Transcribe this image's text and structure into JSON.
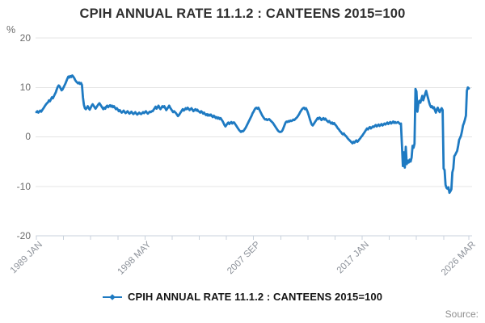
{
  "header": {
    "title": "CPIH ANNUAL RATE 11.1.2 : CANTEENS 2015=100",
    "unit_label": "%"
  },
  "legend": {
    "label": "CPIH ANNUAL RATE 11.1.2 : CANTEENS 2015=100"
  },
  "footer": {
    "source_label": "Source:"
  },
  "chart_data": {
    "type": "line",
    "title": "CPIH ANNUAL RATE 11.1.2 : CANTEENS 2015=100",
    "xlabel": "",
    "ylabel": "%",
    "ylim": [
      -20,
      20
    ],
    "grid": true,
    "legend_position": "bottom",
    "y_ticks": [
      20,
      10,
      0,
      -10,
      -20
    ],
    "y_tick_labels": [
      "20",
      "10",
      "0",
      "-10",
      "-20"
    ],
    "x_tick_labels": [
      "1989 JAN",
      "1998 MAY",
      "2007 SEP",
      "2017 JAN",
      "2026 MAR"
    ],
    "x_labeled_tick_months": [
      0,
      112,
      224,
      336,
      446
    ],
    "x_minor_tick_months": [
      0,
      28,
      56,
      84,
      112,
      140,
      168,
      196,
      224,
      252,
      280,
      308,
      336,
      364,
      392,
      420,
      446
    ],
    "start": "1989-01",
    "end": "2026-03",
    "freq": "monthly",
    "grid_color": "#e4e4e4",
    "axis_color": "#c9d2dc",
    "series": [
      {
        "name": "CPIH ANNUAL RATE 11.1.2 : CANTEENS 2015=100",
        "color": "#1e7ac2",
        "values": [
          5.0,
          5.2,
          4.9,
          5.1,
          5.3,
          5.1,
          5.4,
          5.7,
          6.0,
          6.3,
          6.6,
          6.8,
          7.0,
          7.4,
          7.2,
          7.6,
          8.0,
          7.8,
          8.2,
          8.6,
          9.0,
          9.6,
          10.1,
          10.4,
          10.2,
          9.8,
          9.4,
          9.6,
          10.0,
          10.4,
          10.8,
          11.3,
          11.8,
          12.2,
          12.0,
          12.3,
          12.1,
          12.4,
          12.2,
          11.9,
          11.5,
          11.2,
          11.0,
          10.8,
          11.0,
          10.7,
          10.9,
          10.5,
          8.0,
          6.5,
          5.8,
          5.6,
          5.9,
          6.2,
          5.8,
          5.5,
          5.9,
          6.3,
          6.6,
          6.3,
          6.0,
          5.7,
          6.0,
          6.3,
          6.6,
          6.8,
          6.5,
          6.2,
          5.9,
          5.6,
          5.9,
          5.7,
          6.1,
          6.3,
          6.0,
          6.2,
          6.4,
          6.1,
          6.3,
          6.0,
          6.2,
          5.9,
          5.6,
          5.8,
          5.5,
          5.2,
          5.4,
          5.1,
          4.9,
          5.1,
          5.3,
          5.0,
          4.8,
          5.0,
          5.2,
          4.9,
          4.7,
          4.9,
          5.1,
          4.8,
          4.6,
          4.8,
          5.0,
          4.7,
          4.5,
          4.7,
          4.9,
          4.7,
          4.6,
          4.8,
          5.0,
          4.8,
          5.0,
          5.2,
          4.9,
          4.7,
          4.9,
          5.1,
          5.0,
          5.2,
          5.2,
          5.5,
          5.8,
          6.1,
          5.7,
          6.0,
          6.3,
          5.9,
          5.6,
          5.9,
          6.2,
          6.0,
          6.2,
          5.8,
          5.4,
          5.7,
          6.0,
          6.3,
          5.9,
          5.6,
          5.3,
          5.0,
          5.2,
          5.0,
          4.8,
          4.5,
          4.2,
          4.4,
          4.7,
          5.0,
          5.3,
          5.6,
          5.3,
          5.5,
          5.8,
          5.6,
          5.9,
          5.7,
          5.4,
          5.6,
          5.8,
          5.5,
          5.2,
          5.4,
          5.6,
          5.3,
          5.5,
          5.2,
          5.1,
          4.9,
          5.2,
          5.0,
          4.7,
          4.9,
          4.6,
          4.4,
          4.6,
          4.3,
          4.5,
          4.3,
          4.5,
          4.2,
          4.0,
          4.3,
          4.1,
          3.8,
          4.0,
          3.7,
          3.9,
          3.6,
          3.8,
          3.5,
          3.2,
          2.8,
          2.4,
          2.1,
          2.4,
          2.7,
          2.9,
          2.6,
          2.8,
          3.0,
          2.7,
          2.9,
          2.9,
          2.6,
          2.3,
          2.0,
          1.7,
          1.4,
          1.2,
          1.0,
          1.2,
          1.1,
          1.3,
          1.6,
          1.9,
          2.3,
          2.7,
          3.1,
          3.5,
          3.9,
          4.3,
          4.8,
          5.1,
          5.5,
          5.8,
          5.9,
          5.7,
          5.9,
          5.5,
          5.1,
          4.7,
          4.3,
          4.0,
          3.7,
          3.5,
          3.6,
          3.4,
          3.5,
          3.6,
          3.4,
          3.2,
          3.0,
          2.8,
          2.5,
          2.2,
          1.9,
          1.6,
          1.3,
          1.1,
          1.0,
          1.0,
          1.1,
          1.4,
          1.9,
          2.4,
          2.9,
          3.1,
          3.0,
          3.2,
          3.1,
          3.3,
          3.2,
          3.3,
          3.5,
          3.4,
          3.6,
          3.8,
          4.0,
          4.3,
          4.6,
          5.0,
          5.3,
          5.6,
          5.8,
          5.9,
          5.6,
          5.8,
          5.4,
          4.9,
          4.3,
          3.6,
          3.0,
          2.5,
          2.3,
          2.6,
          2.9,
          3.2,
          3.5,
          3.8,
          3.6,
          3.9,
          3.7,
          3.4,
          3.6,
          3.8,
          3.5,
          3.7,
          3.4,
          3.2,
          3.0,
          3.2,
          2.9,
          2.7,
          2.9,
          2.6,
          2.8,
          2.5,
          2.3,
          2.0,
          1.7,
          1.5,
          1.2,
          1.0,
          0.7,
          0.5,
          0.7,
          0.4,
          0.2,
          0.0,
          -0.3,
          -0.5,
          -0.7,
          -0.9,
          -1.1,
          -1.3,
          -1.0,
          -1.2,
          -0.9,
          -0.7,
          -1.0,
          -0.8,
          -0.5,
          -0.3,
          0.0,
          0.2,
          0.5,
          0.8,
          1.1,
          1.4,
          1.7,
          1.5,
          1.8,
          2.0,
          1.7,
          1.9,
          2.1,
          2.0,
          2.2,
          2.4,
          2.1,
          2.3,
          2.5,
          2.2,
          2.4,
          2.6,
          2.3,
          2.5,
          2.7,
          2.5,
          2.7,
          2.9,
          2.6,
          2.8,
          3.0,
          2.7,
          2.9,
          3.1,
          2.8,
          3.0,
          2.8,
          2.9,
          3.0,
          2.8,
          2.6,
          2.7,
          -1.5,
          -5.9,
          -3.1,
          -6.2,
          -2.0,
          -5.5,
          -4.8,
          -5.2,
          -4.6,
          -5.0,
          -4.2,
          -1.8,
          -2.2,
          -1.4,
          9.7,
          9.2,
          5.1,
          6.7,
          7.3,
          6.9,
          7.6,
          8.3,
          7.4,
          8.0,
          8.7,
          9.3,
          8.5,
          7.8,
          7.0,
          6.4,
          6.0,
          6.2,
          5.8,
          6.0,
          5.4,
          4.9,
          5.6,
          5.9,
          5.3,
          5.0,
          5.5,
          5.8,
          5.4,
          -6.4,
          -6.7,
          -9.7,
          -10.3,
          -10.5,
          -10.2,
          -11.3,
          -11.0,
          -10.6,
          -7.2,
          -6.4,
          -3.9,
          -3.6,
          -3.2,
          -2.8,
          -1.8,
          -0.6,
          -0.2,
          0.3,
          1.2,
          2.3,
          2.8,
          3.5,
          4.3,
          9.3,
          10.0,
          9.8
        ]
      }
    ]
  }
}
